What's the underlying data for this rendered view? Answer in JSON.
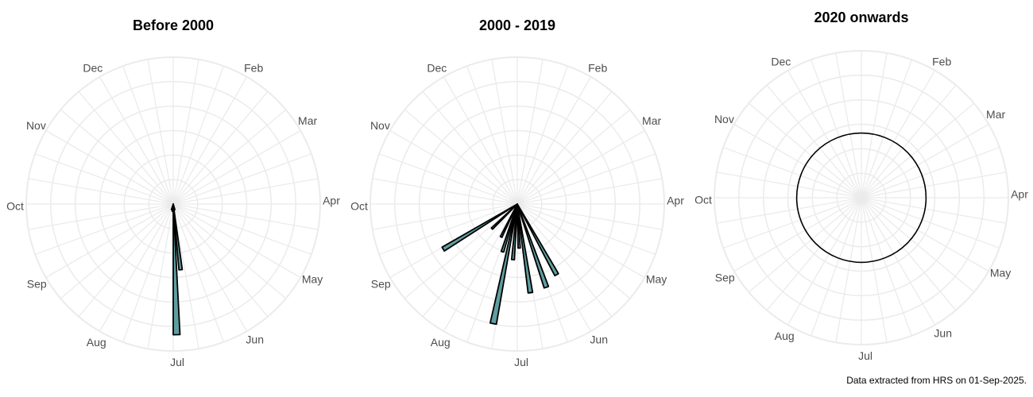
{
  "caption": "Data extracted from HRS on 01-Sep-2025.",
  "colors": {
    "bar_fill": "#5f9ea0",
    "bar_stroke": "#000000",
    "grid": "#ebebeb",
    "axis_text": "#4d4d4d"
  },
  "chart_data": [
    {
      "type": "bar",
      "coord": "polar",
      "title": "Before 2000",
      "month_labels": [
        "Jan",
        "Feb",
        "Mar",
        "Apr",
        "May",
        "Jun",
        "Jul",
        "Aug",
        "Sep",
        "Oct",
        "Nov",
        "Dec"
      ],
      "grid": true,
      "rmax": 1,
      "bars": [
        {
          "doy": 182,
          "width": 3,
          "value": 0.89
        },
        {
          "doy": 177,
          "width": 3,
          "value": 0.45
        },
        {
          "doy": 168,
          "width": 3,
          "value": 0.04
        },
        {
          "doy": 200,
          "width": 3,
          "value": 0.04
        },
        {
          "doy": 190,
          "width": 3,
          "value": 0.05
        }
      ]
    },
    {
      "type": "bar",
      "coord": "polar",
      "title": "2000 - 2019",
      "month_labels": [
        "Jan",
        "Feb",
        "Mar",
        "Apr",
        "May",
        "Jun",
        "Jul",
        "Aug",
        "Sep",
        "Oct",
        "Nov",
        "Dec"
      ],
      "grid": true,
      "rmax": 1,
      "bars": [
        {
          "doy": 154,
          "width": 3,
          "value": 0.55
        },
        {
          "doy": 164,
          "width": 3,
          "value": 0.6
        },
        {
          "doy": 175,
          "width": 3,
          "value": 0.61
        },
        {
          "doy": 181,
          "width": 3,
          "value": 0.3
        },
        {
          "doy": 188,
          "width": 3,
          "value": 0.38
        },
        {
          "doy": 195,
          "width": 3,
          "value": 0.83
        },
        {
          "doy": 201,
          "width": 3,
          "value": 0.34
        },
        {
          "doy": 210,
          "width": 3,
          "value": 0.25
        },
        {
          "doy": 230,
          "width": 3,
          "value": 0.24
        },
        {
          "doy": 243,
          "width": 3,
          "value": 0.59
        }
      ]
    },
    {
      "type": "bar",
      "coord": "polar",
      "title": "2020 onwards",
      "month_labels": [
        "Jan",
        "Feb",
        "Mar",
        "Apr",
        "May",
        "Jun",
        "Jul",
        "Aug",
        "Sep",
        "Oct",
        "Nov",
        "Dec"
      ],
      "grid": true,
      "rmax": 1,
      "bars": [],
      "outline_circle": 0.44
    }
  ]
}
